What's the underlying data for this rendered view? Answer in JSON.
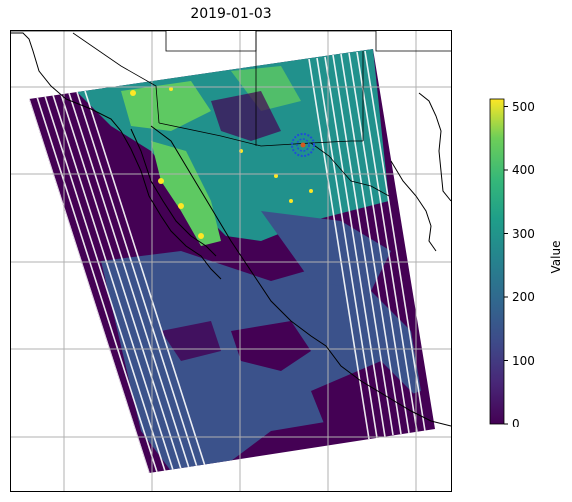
{
  "title": "2019-01-03",
  "colorbar": {
    "label": "Value",
    "ticks": [
      "0",
      "100",
      "200",
      "300",
      "400",
      "500"
    ],
    "min": 0,
    "max": 512,
    "colormap": "viridis"
  },
  "map": {
    "projection": "PlateCarree",
    "gridlines": true,
    "features": [
      "coastlines",
      "borders",
      "states"
    ],
    "marker": {
      "shape": "circle",
      "color": "#1f4fd6"
    }
  },
  "colors": {
    "low": "#440154",
    "mid_low": "#3b528b",
    "mid": "#21918c",
    "mid_high": "#5ec962",
    "high": "#fde725"
  }
}
